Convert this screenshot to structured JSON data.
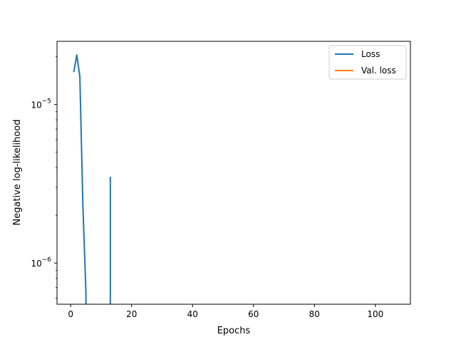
{
  "chart_data": {
    "type": "line",
    "title": "",
    "xlabel": "Epochs",
    "ylabel": "Negative log-likelihood",
    "xlim": [
      -4.5,
      111.5
    ],
    "ylim": [
      5.5e-07,
      2.5e-05
    ],
    "yscale": "log",
    "grid": false,
    "legend_position": "top-right",
    "x_ticks": [
      {
        "value": 0,
        "label": "0"
      },
      {
        "value": 20,
        "label": "20"
      },
      {
        "value": 40,
        "label": "40"
      },
      {
        "value": 60,
        "label": "60"
      },
      {
        "value": 80,
        "label": "80"
      },
      {
        "value": 100,
        "label": "100"
      }
    ],
    "y_ticks": [
      {
        "value": 1e-06,
        "base": "10",
        "exp": "−6"
      },
      {
        "value": 1e-05,
        "base": "10",
        "exp": "−5"
      }
    ],
    "series": [
      {
        "name": "Loss",
        "color": "#1f77b4",
        "segments": [
          [
            [
              1,
              1.6e-05
            ],
            [
              2,
              2.05e-05
            ],
            [
              3,
              1.5e-05
            ],
            [
              4,
              2.3e-06
            ],
            [
              5,
              6.5e-07
            ],
            [
              5,
              5.5e-07
            ]
          ],
          [
            [
              13,
              5.5e-07
            ],
            [
              13,
              3.5e-06
            ]
          ]
        ]
      },
      {
        "name": "Val. loss",
        "color": "#ff7f0e",
        "segments": []
      }
    ]
  }
}
